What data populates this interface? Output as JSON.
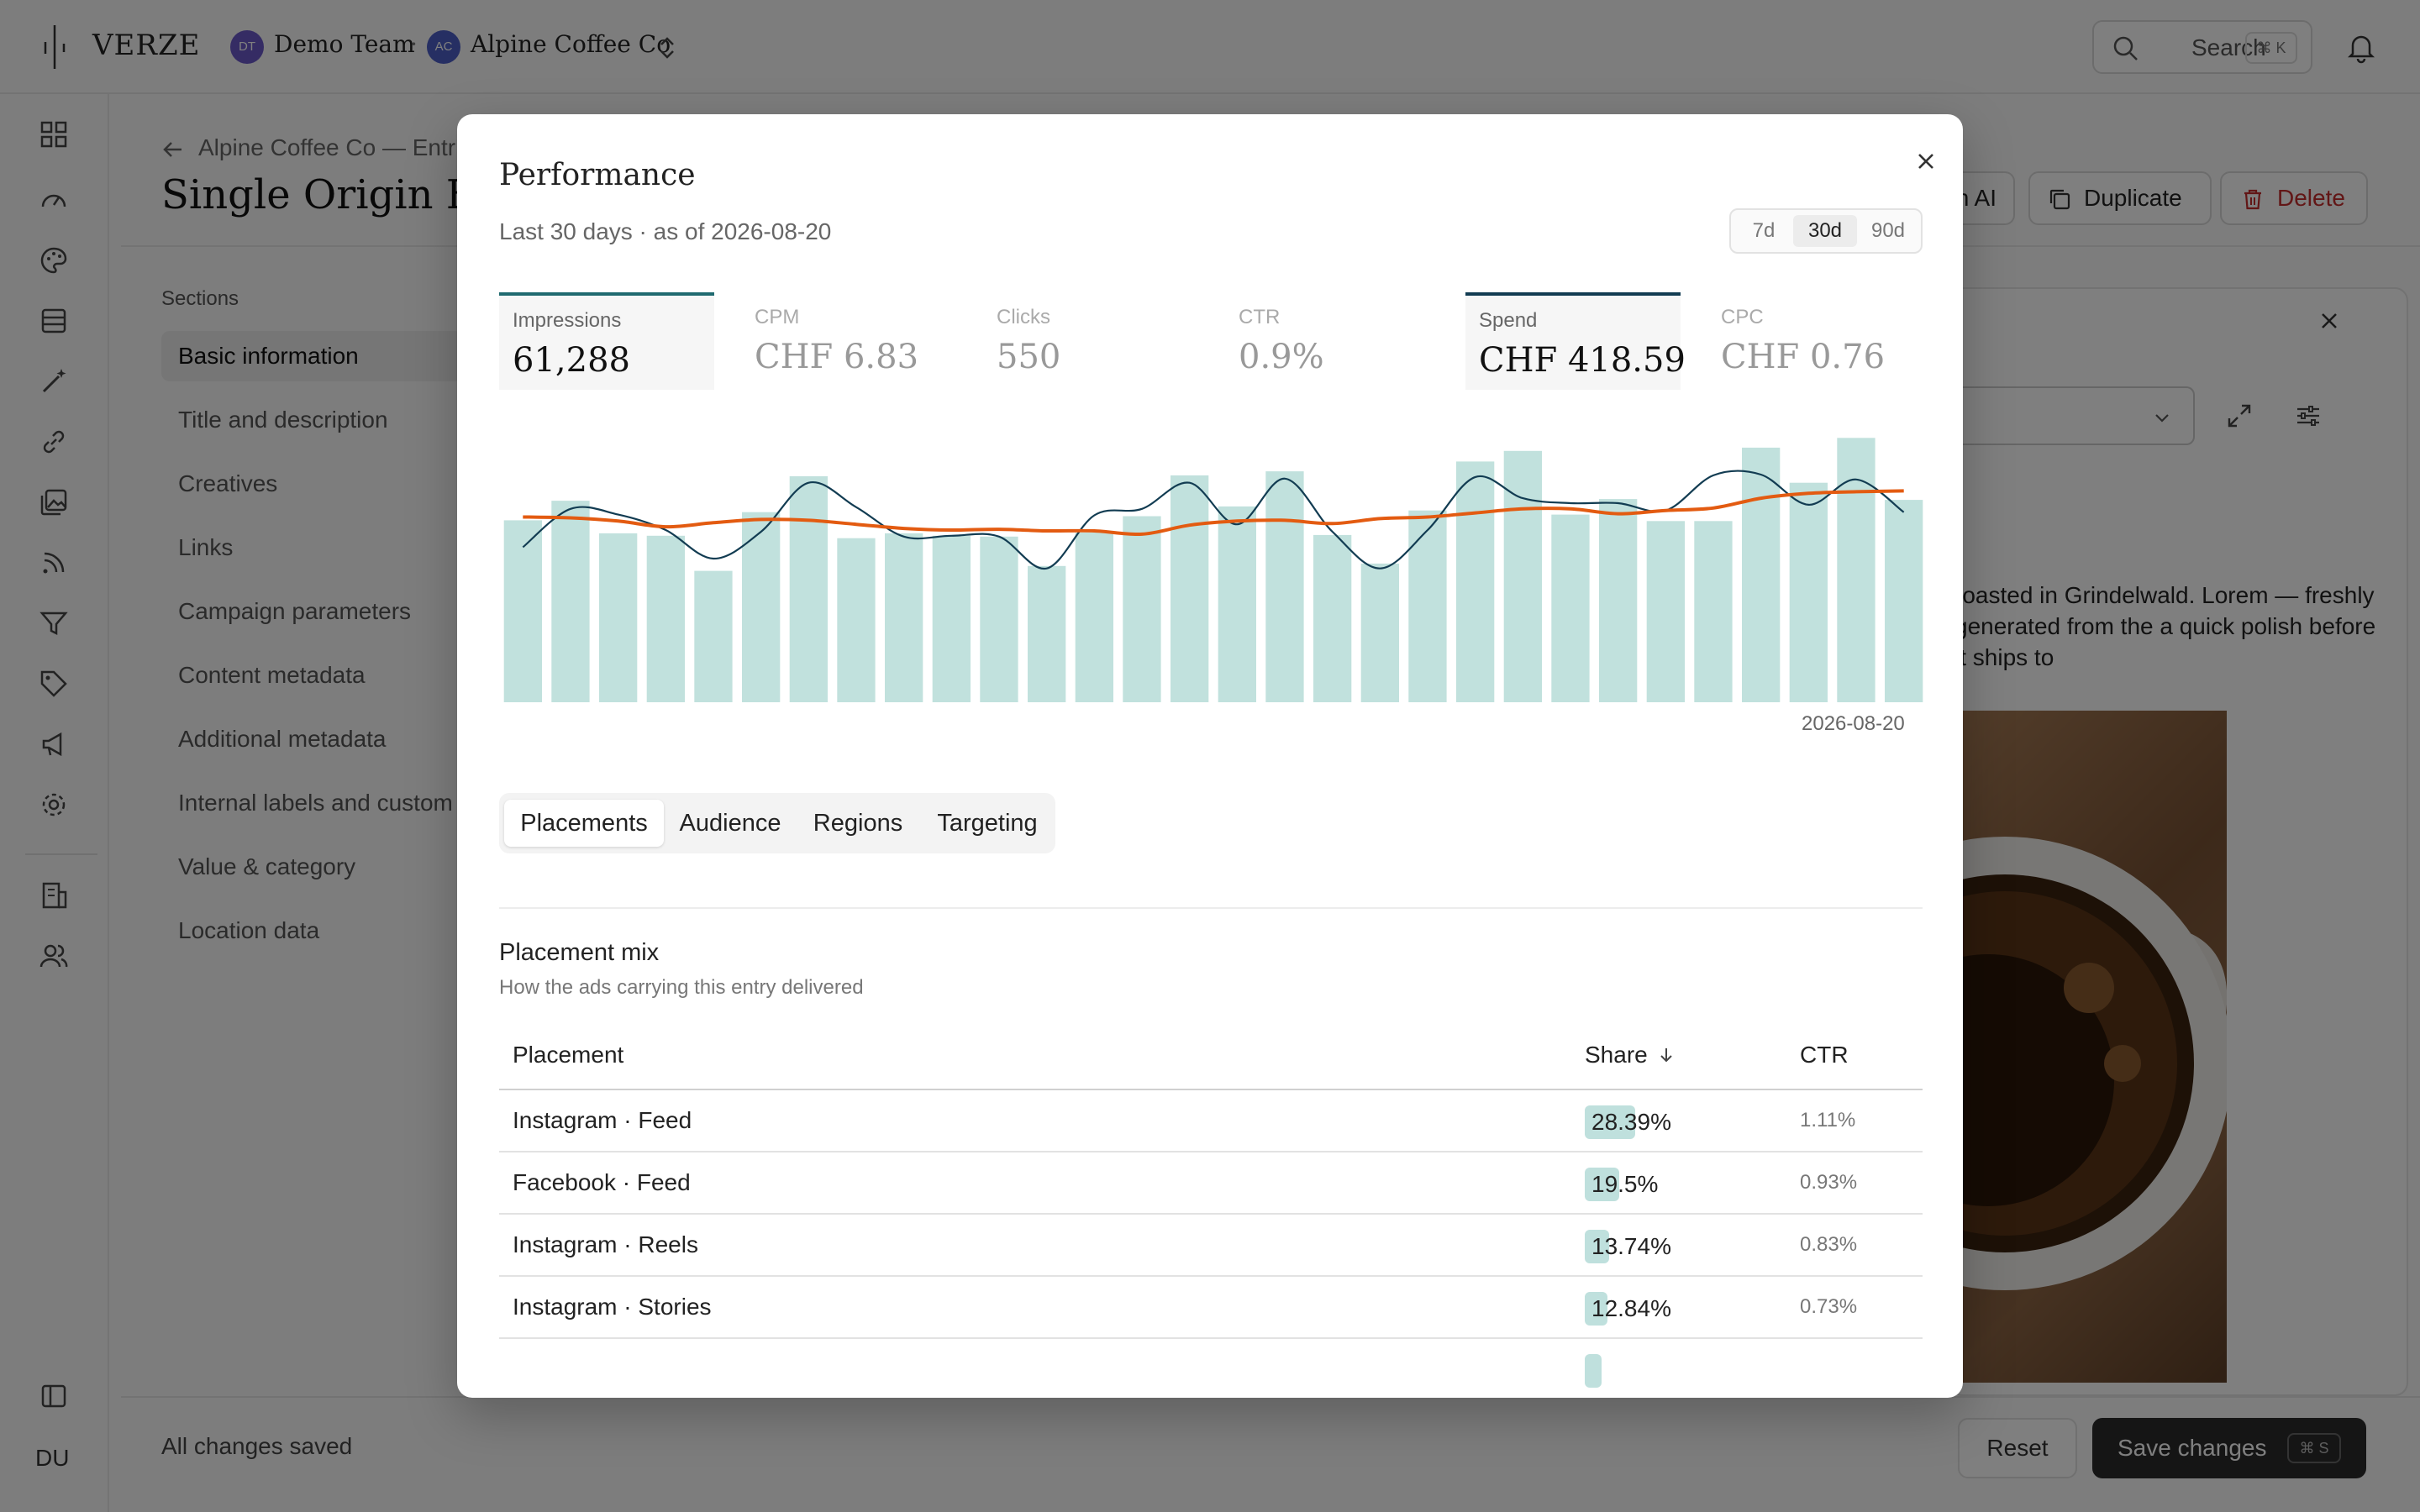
{
  "app": {
    "brand": "VERZE",
    "team_initials": "DT",
    "team": "Demo Team",
    "separator": "·",
    "org_initials": "AC",
    "org": "Alpine Coffee Co"
  },
  "search": {
    "label": "Search",
    "shortcut": "⌘ K"
  },
  "user_initials": "DU",
  "page": {
    "breadcrumb": "Alpine Coffee Co — Entr",
    "title": "Single Origin Esp",
    "actions": {
      "ai": "n AI",
      "duplicate": "Duplicate",
      "delete": "Delete"
    },
    "sections_label": "Sections",
    "sections": [
      "Basic information",
      "Title and description",
      "Creatives",
      "Links",
      "Campaign parameters",
      "Content metadata",
      "Additional metadata",
      "Internal labels and custom",
      "Value & category",
      "Location data"
    ],
    "preview_text": "roasted in Grindelwald. Lorem — freshly generated from the a quick polish before it ships to",
    "status": "All changes saved",
    "reset": "Reset",
    "save": "Save changes",
    "save_shortcut": "⌘ S"
  },
  "modal": {
    "title": "Performance",
    "subtitle": "Last 30 days · as of 2026-08-20",
    "ranges": [
      "7d",
      "30d",
      "90d"
    ],
    "selected_range": "30d",
    "kpis": [
      {
        "label": "Impressions",
        "value": "61,288",
        "selected": true
      },
      {
        "label": "CPM",
        "value": "CHF 6.83",
        "selected": false
      },
      {
        "label": "Clicks",
        "value": "550",
        "selected": false
      },
      {
        "label": "CTR",
        "value": "0.9%",
        "selected": false
      },
      {
        "label": "Spend",
        "value": "CHF 418.59",
        "selected": true
      },
      {
        "label": "CPC",
        "value": "CHF 0.76",
        "selected": false
      }
    ],
    "chart_end_label": "2026-08-20",
    "tabs": [
      "Placements",
      "Audience",
      "Regions",
      "Targeting"
    ],
    "selected_tab": "Placements",
    "mix": {
      "title": "Placement mix",
      "subtitle": "How the ads carrying this entry delivered",
      "columns": {
        "placement": "Placement",
        "share": "Share",
        "ctr": "CTR"
      },
      "rows": [
        {
          "placement": "Instagram · Feed",
          "share": "28.39%",
          "share_value": 28.39,
          "ctr": "1.11%"
        },
        {
          "placement": "Facebook · Feed",
          "share": "19.5%",
          "share_value": 19.5,
          "ctr": "0.93%"
        },
        {
          "placement": "Instagram · Reels",
          "share": "13.74%",
          "share_value": 13.74,
          "ctr": "0.83%"
        },
        {
          "placement": "Instagram · Stories",
          "share": "12.84%",
          "share_value": 12.84,
          "ctr": "0.73%"
        }
      ]
    }
  },
  "chart_data": {
    "type": "bar",
    "x_end": "2026-08-20",
    "series": [
      {
        "values": [
          2230,
          2470,
          2070,
          2040,
          1610,
          2330,
          2770,
          2010,
          2070,
          2040,
          2030,
          1670,
          2080,
          2280,
          2780,
          2400,
          2830,
          2050,
          1700,
          2350,
          2950,
          3080,
          2300,
          2490,
          2220,
          2220,
          3120,
          2690,
          3240,
          2480
        ]
      },
      {
        "values": [
          1900,
          2370,
          2300,
          2110,
          1760,
          2090,
          2690,
          2390,
          2030,
          2040,
          2030,
          1640,
          2290,
          2370,
          2690,
          2180,
          2740,
          2090,
          1640,
          2110,
          2760,
          2500,
          2440,
          2440,
          2350,
          2780,
          2790,
          2420,
          2730,
          2330
        ]
      },
      {
        "values": [
          2270,
          2260,
          2220,
          2150,
          2200,
          2240,
          2230,
          2180,
          2130,
          2110,
          2120,
          2100,
          2100,
          2060,
          2170,
          2220,
          2230,
          2190,
          2250,
          2270,
          2320,
          2370,
          2370,
          2310,
          2350,
          2380,
          2500,
          2560,
          2580,
          2590
        ]
      }
    ],
    "ylim": [
      0,
      3500
    ],
    "colors": {
      "bars": "#c1e1dd",
      "line": "#123c52",
      "trend": "#e35b11"
    }
  },
  "colors": {
    "accent": "#1f6a70",
    "delete": "#c42d2d",
    "bars": "#bfe0dd"
  }
}
